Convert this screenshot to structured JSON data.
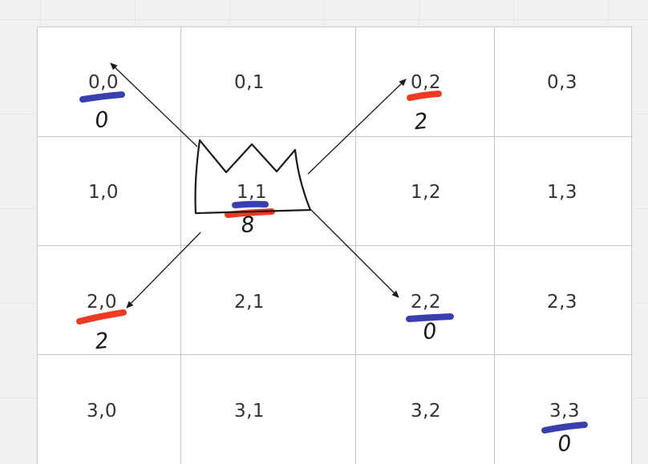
{
  "grid": {
    "rows": 4,
    "cols": 4,
    "cells": [
      [
        "0,0",
        "0,1",
        "0,2",
        "0,3"
      ],
      [
        "1,0",
        "1,1",
        "1,2",
        "1,3"
      ],
      [
        "2,0",
        "2,1",
        "2,2",
        "2,3"
      ],
      [
        "3,0",
        "3,1",
        "3,2",
        "3,3"
      ]
    ]
  },
  "annotations": {
    "cell_0_0": "0",
    "cell_0_2": "2",
    "cell_1_1": "8",
    "cell_2_0": "2",
    "cell_2_2": "0",
    "cell_3_3": "0"
  },
  "colors": {
    "blue_marker": "#3a3fb0",
    "red_marker": "#ee3a22",
    "ink": "#1a1a1a",
    "grid_line": "#c4c4c4"
  },
  "icons": {
    "piece": "king-crown-icon",
    "move": "arrow-icon"
  }
}
